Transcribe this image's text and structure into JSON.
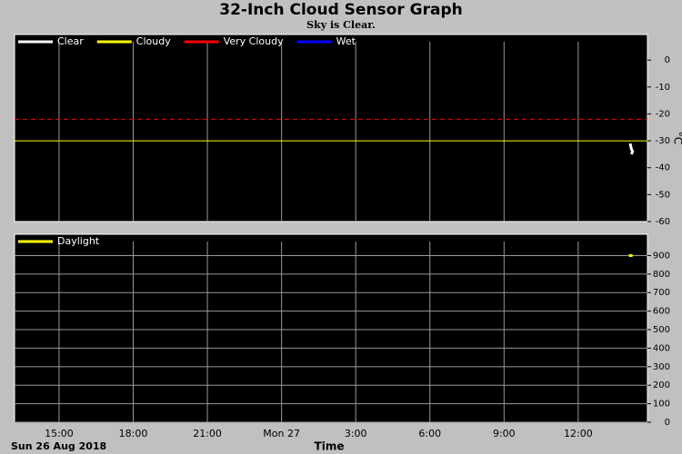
{
  "chart_data": [
    {
      "type": "line",
      "title": "32-Inch Cloud Sensor Graph",
      "subtitle": "Sky is Clear.",
      "y_label": "°C",
      "ylim": [
        -60,
        9.5
      ],
      "yticks": [
        0,
        -10,
        -20,
        -30,
        -40,
        -50,
        -60
      ],
      "grid": "x",
      "legend": "upper left",
      "series": [
        {
          "name": "Clear",
          "color": "#ffffff",
          "x": [
            38.1,
            38.15,
            38.2,
            38.15
          ],
          "values": [
            -31,
            -33,
            -34,
            -35
          ]
        },
        {
          "name": "Cloudy",
          "color": "#ffff00",
          "threshold": -30
        },
        {
          "name": "Very Cloudy",
          "color": "#ff0000",
          "threshold": -22,
          "dashed": true
        },
        {
          "name": "Wet",
          "color": "#0000ff"
        }
      ]
    },
    {
      "type": "line",
      "x_label": "Time",
      "date_label": "Sun 26 Aug 2018",
      "xlim": [
        13.2,
        38.8
      ],
      "xticks": [
        {
          "value": 15,
          "label": "15:00"
        },
        {
          "value": 18,
          "label": "18:00"
        },
        {
          "value": 21,
          "label": "21:00"
        },
        {
          "value": 24,
          "label": "Mon 27"
        },
        {
          "value": 27,
          "label": "3:00"
        },
        {
          "value": 30,
          "label": "6:00"
        },
        {
          "value": 33,
          "label": "9:00"
        },
        {
          "value": 36,
          "label": "12:00"
        }
      ],
      "ylim": [
        0,
        1015
      ],
      "yticks": [
        0,
        100,
        200,
        300,
        400,
        500,
        600,
        700,
        800,
        900
      ],
      "grid": "both",
      "legend": "upper left",
      "series": [
        {
          "name": "Daylight",
          "color": "#ffff00",
          "x": [
            38.05,
            38.2
          ],
          "values": [
            900,
            900
          ]
        }
      ]
    }
  ]
}
